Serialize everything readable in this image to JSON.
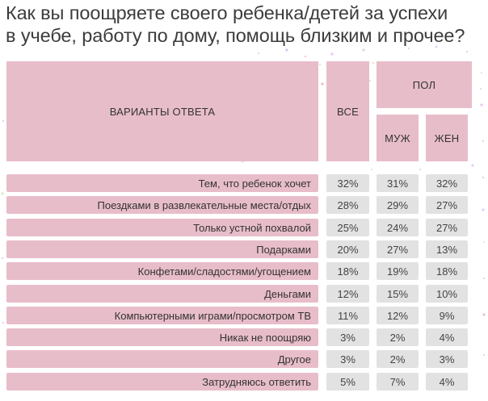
{
  "title_line1": "Как вы поощряете своего ребенка/детей за успехи",
  "title_line2": "в учебе, работу по дому, помощь близким и прочее?",
  "headers": {
    "answers": "ВАРИАНТЫ ОТВЕТА",
    "all": "ВСЕ",
    "gender": "ПОЛ",
    "male": "МУЖ",
    "female": "ЖЕН"
  },
  "colors": {
    "pink": "#e8bdca",
    "grey": "#e2e2e2"
  },
  "chart_data": {
    "type": "table",
    "title": "Как вы поощряете своего ребенка/детей за успехи в учебе, работу по дому, помощь близким и прочее?",
    "columns": [
      "ВАРИАНТЫ ОТВЕТА",
      "ВСЕ",
      "МУЖ",
      "ЖЕН"
    ],
    "rows": [
      {
        "label": "Тем, что ребенок хочет",
        "all": "32%",
        "male": "31%",
        "female": "32%"
      },
      {
        "label": "Поездками в развлекательные места/отдых",
        "all": "28%",
        "male": "29%",
        "female": "27%"
      },
      {
        "label": "Только устной похвалой",
        "all": "25%",
        "male": "24%",
        "female": "27%"
      },
      {
        "label": "Подарками",
        "all": "20%",
        "male": "27%",
        "female": "13%"
      },
      {
        "label": "Конфетами/сладостями/угощением",
        "all": "18%",
        "male": "19%",
        "female": "18%"
      },
      {
        "label": "Деньгами",
        "all": "12%",
        "male": "15%",
        "female": "10%"
      },
      {
        "label": "Компьютерными играми/просмотром ТВ",
        "all": "11%",
        "male": "12%",
        "female": "9%"
      },
      {
        "label": "Никак не поощряю",
        "all": "3%",
        "male": "2%",
        "female": "4%"
      },
      {
        "label": "Другое",
        "all": "3%",
        "male": "2%",
        "female": "3%"
      },
      {
        "label": "Затрудняюсь ответить",
        "all": "5%",
        "male": "7%",
        "female": "4%"
      }
    ]
  }
}
